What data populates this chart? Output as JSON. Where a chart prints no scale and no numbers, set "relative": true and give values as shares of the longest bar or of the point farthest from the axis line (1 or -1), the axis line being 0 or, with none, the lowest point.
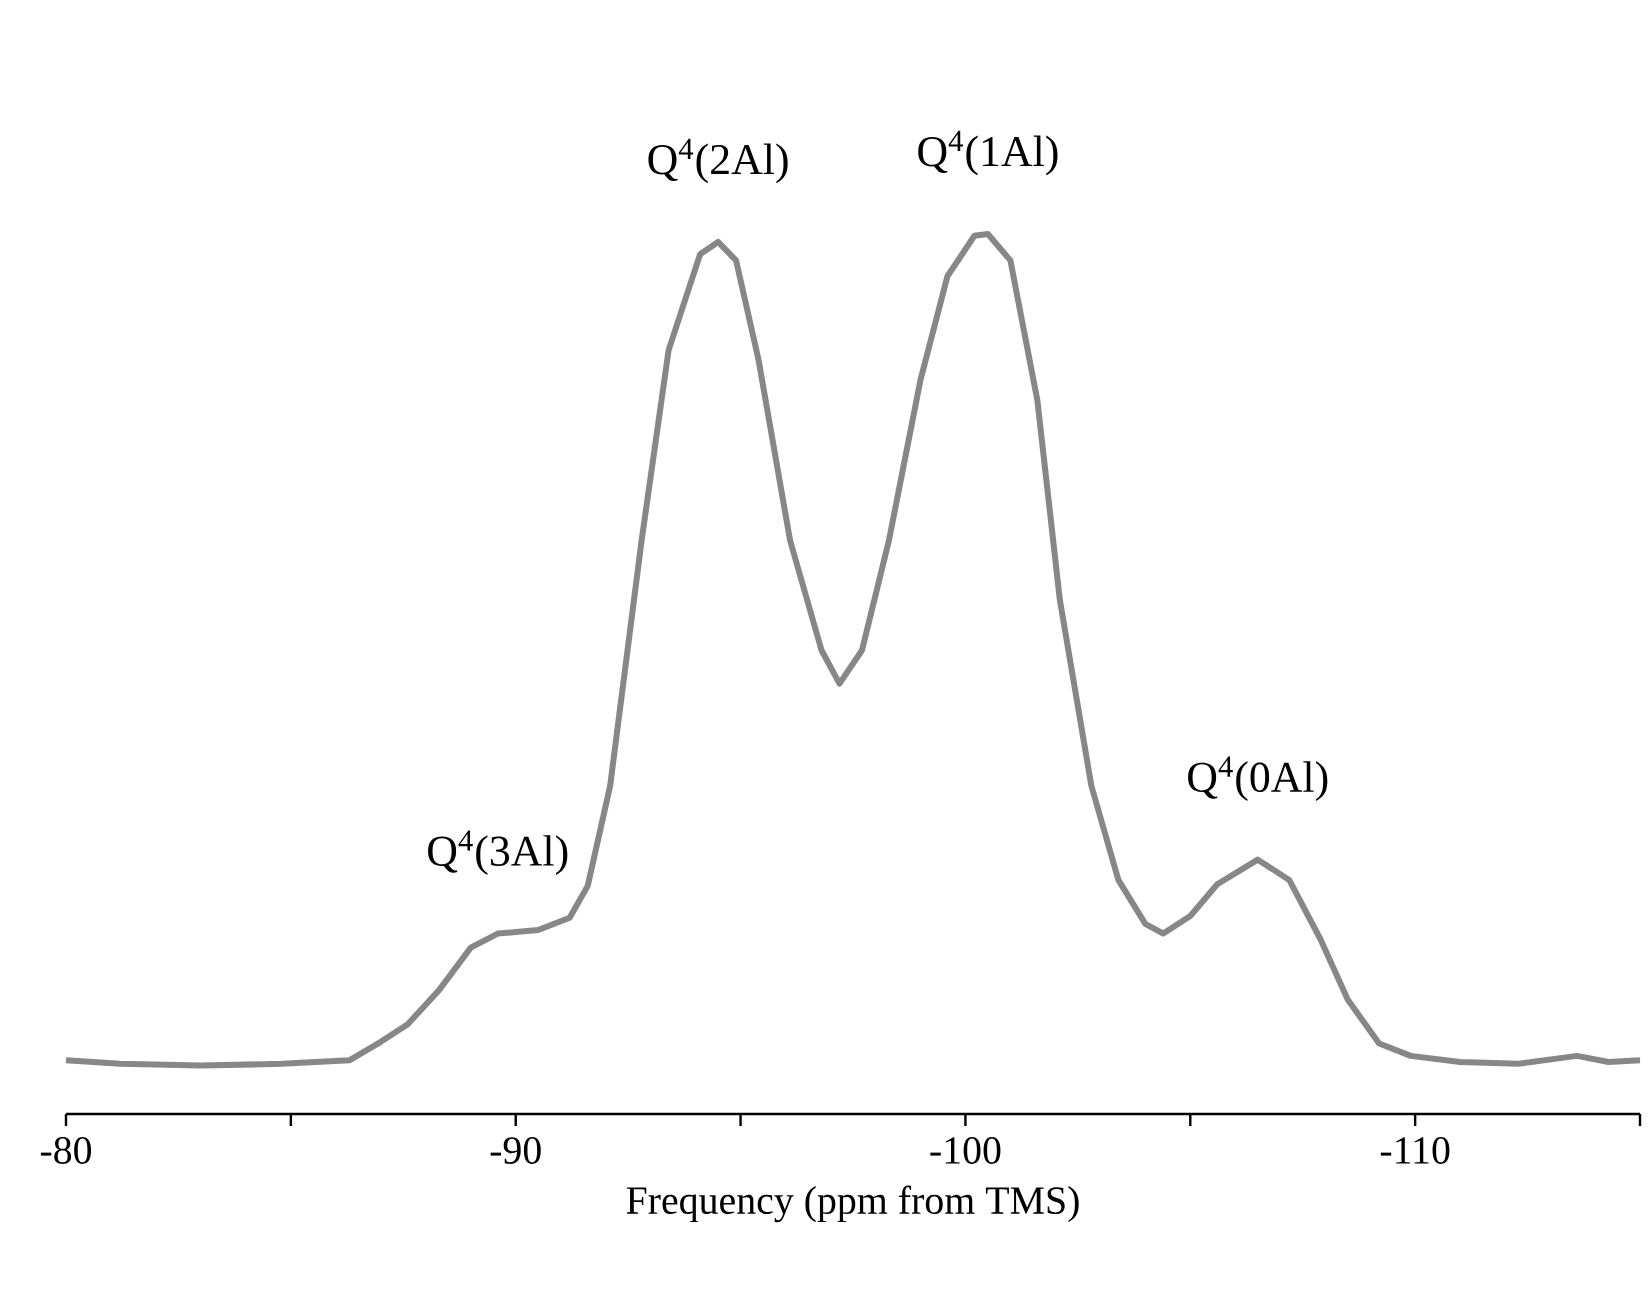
{
  "chart_data": {
    "type": "line",
    "relative": true,
    "xlabel": "Frequency (ppm from TMS)",
    "xlim": [
      -80,
      -115
    ],
    "xticks": [
      -80,
      {
        "value": -85,
        "label": null
      },
      -90,
      {
        "value": -95,
        "label": null
      },
      -100,
      {
        "value": -105,
        "label": null
      },
      -110,
      {
        "value": -115,
        "label": null
      }
    ],
    "line_style": "solid",
    "marker": "none",
    "series": [
      {
        "color": "#878787",
        "x": [
          -80,
          -81.2,
          -83.0,
          -84.8,
          -86.3,
          -87.0,
          -87.6,
          -88.3,
          -89.0,
          -89.6,
          -90.5,
          -91.2,
          -91.6,
          -92.1,
          -92.8,
          -93.4,
          -94.1,
          -94.5,
          -94.9,
          -95.4,
          -96.1,
          -96.8,
          -97.2,
          -97.7,
          -98.3,
          -99.0,
          -99.6,
          -100.2,
          -100.5,
          -101.0,
          -101.6,
          -102.1,
          -102.8,
          -103.4,
          -104.0,
          -104.4,
          -105.0,
          -105.6,
          -106.5,
          -107.2,
          -107.9,
          -108.5,
          -109.2,
          -109.9,
          -111.0,
          -112.3,
          -113.6,
          -114.3,
          -115.0
        ],
        "values": [
          0.061,
          0.057,
          0.055,
          0.057,
          0.061,
          0.082,
          0.102,
          0.141,
          0.189,
          0.205,
          0.209,
          0.223,
          0.259,
          0.373,
          0.652,
          0.868,
          0.977,
          0.991,
          0.97,
          0.857,
          0.652,
          0.527,
          0.489,
          0.527,
          0.652,
          0.834,
          0.952,
          0.998,
          1.0,
          0.97,
          0.811,
          0.584,
          0.373,
          0.266,
          0.216,
          0.205,
          0.225,
          0.261,
          0.289,
          0.266,
          0.198,
          0.13,
          0.08,
          0.066,
          0.059,
          0.057,
          0.066,
          0.059,
          0.061
        ]
      }
    ],
    "annotations": [
      {
        "text": "Q$^{4}$(3Al)",
        "x": -89.6,
        "y": 0.205
      },
      {
        "text": "Q$^{4}$(2Al)",
        "x": -94.5,
        "y": 0.991
      },
      {
        "text": "Q$^{4}$(1Al)",
        "x": -100.5,
        "y": 1.0
      },
      {
        "text": "Q$^{4}$(0Al)",
        "x": -106.5,
        "y": 0.289
      }
    ]
  }
}
